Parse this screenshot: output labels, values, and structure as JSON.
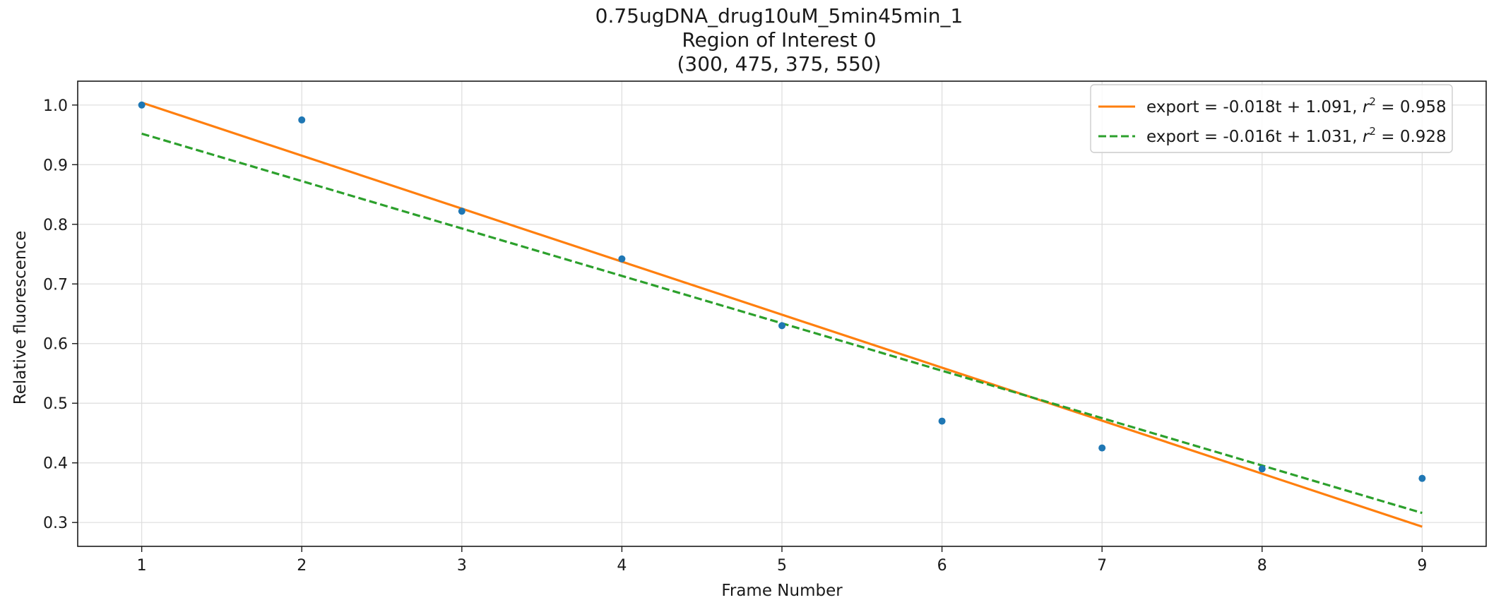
{
  "chart_data": {
    "type": "scatter",
    "title_lines": [
      "0.75ugDNA_drug10uM_5min45min_1",
      "Region of Interest 0",
      "(300, 475, 375, 550)"
    ],
    "xlabel": "Frame Number",
    "ylabel": "Relative fluorescence",
    "xlim": [
      0.6,
      9.4
    ],
    "ylim": [
      0.26,
      1.04
    ],
    "xticks": [
      1,
      2,
      3,
      4,
      5,
      6,
      7,
      8,
      9
    ],
    "yticks": [
      0.3,
      0.4,
      0.5,
      0.6,
      0.7,
      0.8,
      0.9,
      1.0
    ],
    "ytick_labels": [
      "0.3",
      "0.4",
      "0.5",
      "0.6",
      "0.7",
      "0.8",
      "0.9",
      "1.0"
    ],
    "grid": true,
    "legend_position": "top-right",
    "points": {
      "color": "#1f77b4",
      "x": [
        1,
        2,
        3,
        4,
        5,
        6,
        7,
        8,
        9
      ],
      "y": [
        1.0,
        0.975,
        0.822,
        0.742,
        0.63,
        0.47,
        0.425,
        0.39,
        0.374
      ]
    },
    "fits": [
      {
        "legend_prefix": "export = -0.018t + 1.091, ",
        "legend_r": "r",
        "legend_sup": "2",
        "legend_suffix": " = 0.958",
        "color": "#ff7f0e",
        "style": "solid",
        "x": [
          1,
          9
        ],
        "y": [
          1.004,
          0.293
        ]
      },
      {
        "legend_prefix": "export = -0.016t + 1.031, ",
        "legend_r": "r",
        "legend_sup": "2",
        "legend_suffix": " = 0.928",
        "color": "#2ca02c",
        "style": "dashed",
        "x": [
          1,
          9
        ],
        "y": [
          0.952,
          0.316
        ]
      }
    ]
  }
}
